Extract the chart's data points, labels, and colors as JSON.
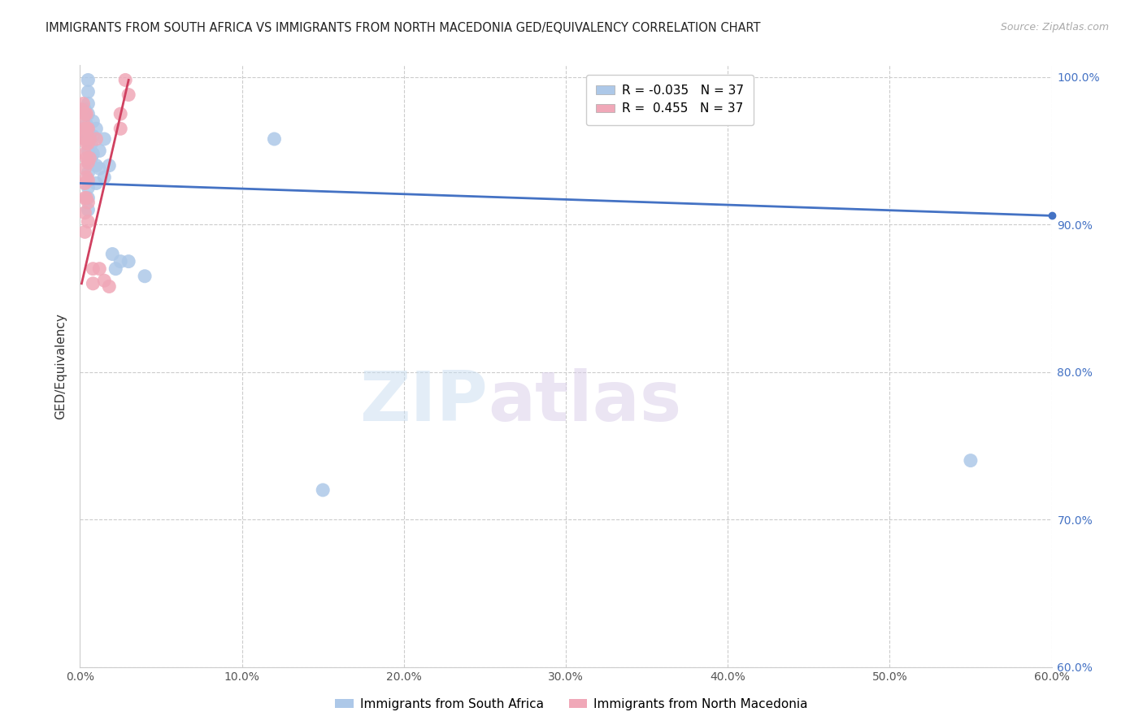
{
  "title": "IMMIGRANTS FROM SOUTH AFRICA VS IMMIGRANTS FROM NORTH MACEDONIA GED/EQUIVALENCY CORRELATION CHART",
  "source": "Source: ZipAtlas.com",
  "ylabel": "GED/Equivalency",
  "series1_label": "Immigrants from South Africa",
  "series2_label": "Immigrants from North Macedonia",
  "series1_color": "#adc8e8",
  "series2_color": "#f0a8b8",
  "series1_line_color": "#4472C4",
  "series2_line_color": "#d04060",
  "series1_R": -0.035,
  "series1_N": 37,
  "series2_R": 0.455,
  "series2_N": 37,
  "x_min": 0.0,
  "x_max": 0.6,
  "y_min": 0.6,
  "y_max": 1.008,
  "x_ticks": [
    0.0,
    0.1,
    0.2,
    0.3,
    0.4,
    0.5,
    0.6
  ],
  "y_ticks": [
    0.6,
    0.7,
    0.8,
    0.9,
    1.0
  ],
  "x_tick_labels": [
    "0.0%",
    "10.0%",
    "20.0%",
    "30.0%",
    "40.0%",
    "50.0%",
    "60.0%"
  ],
  "y_tick_labels": [
    "60.0%",
    "70.0%",
    "80.0%",
    "90.0%",
    "100.0%"
  ],
  "watermark_zip": "ZIP",
  "watermark_atlas": "atlas",
  "series1_points": [
    [
      0.003,
      0.978
    ],
    [
      0.004,
      0.968
    ],
    [
      0.004,
      0.958
    ],
    [
      0.005,
      0.998
    ],
    [
      0.005,
      0.99
    ],
    [
      0.005,
      0.982
    ],
    [
      0.005,
      0.975
    ],
    [
      0.005,
      0.965
    ],
    [
      0.005,
      0.958
    ],
    [
      0.005,
      0.95
    ],
    [
      0.005,
      0.942
    ],
    [
      0.005,
      0.935
    ],
    [
      0.005,
      0.925
    ],
    [
      0.005,
      0.918
    ],
    [
      0.005,
      0.91
    ],
    [
      0.006,
      0.96
    ],
    [
      0.007,
      0.955
    ],
    [
      0.007,
      0.945
    ],
    [
      0.008,
      0.97
    ],
    [
      0.008,
      0.96
    ],
    [
      0.008,
      0.948
    ],
    [
      0.01,
      0.965
    ],
    [
      0.01,
      0.94
    ],
    [
      0.01,
      0.928
    ],
    [
      0.012,
      0.95
    ],
    [
      0.012,
      0.938
    ],
    [
      0.015,
      0.958
    ],
    [
      0.015,
      0.932
    ],
    [
      0.018,
      0.94
    ],
    [
      0.02,
      0.88
    ],
    [
      0.022,
      0.87
    ],
    [
      0.025,
      0.875
    ],
    [
      0.03,
      0.875
    ],
    [
      0.04,
      0.865
    ],
    [
      0.12,
      0.958
    ],
    [
      0.15,
      0.72
    ],
    [
      0.55,
      0.74
    ]
  ],
  "series2_points": [
    [
      0.001,
      0.978
    ],
    [
      0.002,
      0.982
    ],
    [
      0.002,
      0.97
    ],
    [
      0.002,
      0.96
    ],
    [
      0.003,
      0.975
    ],
    [
      0.003,
      0.965
    ],
    [
      0.003,
      0.958
    ],
    [
      0.003,
      0.948
    ],
    [
      0.003,
      0.938
    ],
    [
      0.003,
      0.928
    ],
    [
      0.003,
      0.918
    ],
    [
      0.003,
      0.908
    ],
    [
      0.003,
      0.895
    ],
    [
      0.004,
      0.975
    ],
    [
      0.004,
      0.965
    ],
    [
      0.004,
      0.955
    ],
    [
      0.004,
      0.945
    ],
    [
      0.004,
      0.932
    ],
    [
      0.004,
      0.918
    ],
    [
      0.005,
      0.965
    ],
    [
      0.005,
      0.955
    ],
    [
      0.005,
      0.942
    ],
    [
      0.005,
      0.93
    ],
    [
      0.005,
      0.915
    ],
    [
      0.005,
      0.902
    ],
    [
      0.006,
      0.958
    ],
    [
      0.006,
      0.945
    ],
    [
      0.008,
      0.87
    ],
    [
      0.008,
      0.86
    ],
    [
      0.01,
      0.958
    ],
    [
      0.012,
      0.87
    ],
    [
      0.015,
      0.862
    ],
    [
      0.018,
      0.858
    ],
    [
      0.025,
      0.975
    ],
    [
      0.025,
      0.965
    ],
    [
      0.028,
      0.998
    ],
    [
      0.03,
      0.988
    ]
  ],
  "blue_line_x": [
    0.0,
    0.6
  ],
  "blue_line_y": [
    0.928,
    0.906
  ],
  "pink_line_x": [
    0.001,
    0.03
  ],
  "pink_line_y": [
    0.86,
    0.998
  ]
}
